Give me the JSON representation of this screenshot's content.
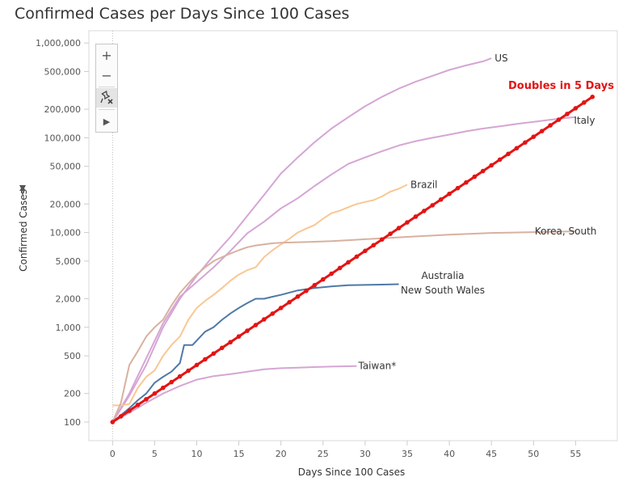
{
  "chart_data": {
    "type": "line",
    "title": "Confirmed Cases per Days Since 100 Cases",
    "xlabel": "Days Since 100 Cases",
    "ylabel": "Confirmed Cases",
    "xlim": [
      -3,
      60
    ],
    "ylim": [
      80,
      1100000
    ],
    "yscale": "log",
    "x_ticks": [
      0,
      5,
      10,
      15,
      20,
      25,
      30,
      35,
      40,
      45,
      50,
      55
    ],
    "y_ticks": [
      {
        "value": 100,
        "label": "100"
      },
      {
        "value": 200,
        "label": "200"
      },
      {
        "value": 500,
        "label": "500"
      },
      {
        "value": 1000,
        "label": "1,000"
      },
      {
        "value": 2000,
        "label": "2,000"
      },
      {
        "value": 5000,
        "label": "5,000"
      },
      {
        "value": 10000,
        "label": "10,000"
      },
      {
        "value": 20000,
        "label": "20,000"
      },
      {
        "value": 50000,
        "label": "50,000"
      },
      {
        "value": 100000,
        "label": "100,000"
      },
      {
        "value": 200000,
        "label": "200,000"
      },
      {
        "value": 500000,
        "label": "500,000"
      },
      {
        "value": 1000000,
        "label": "1,000,000"
      }
    ],
    "series": [
      {
        "name": "US",
        "color": "#d5a6d4",
        "points": [
          [
            0,
            100
          ],
          [
            2,
            190
          ],
          [
            4,
            400
          ],
          [
            6,
            1000
          ],
          [
            8,
            2000
          ],
          [
            10,
            3500
          ],
          [
            12,
            5700
          ],
          [
            14,
            9000
          ],
          [
            16,
            15000
          ],
          [
            18,
            25000
          ],
          [
            20,
            42000
          ],
          [
            22,
            62000
          ],
          [
            24,
            90000
          ],
          [
            26,
            125000
          ],
          [
            28,
            165000
          ],
          [
            30,
            215000
          ],
          [
            32,
            270000
          ],
          [
            34,
            330000
          ],
          [
            36,
            390000
          ],
          [
            38,
            450000
          ],
          [
            40,
            520000
          ],
          [
            42,
            580000
          ],
          [
            44,
            640000
          ],
          [
            45,
            690000
          ]
        ]
      },
      {
        "name": "Italy",
        "color": "#d5a6d4",
        "points": [
          [
            0,
            100
          ],
          [
            2,
            200
          ],
          [
            4,
            470
          ],
          [
            6,
            1100
          ],
          [
            8,
            2100
          ],
          [
            10,
            3000
          ],
          [
            12,
            4300
          ],
          [
            14,
            6400
          ],
          [
            16,
            9800
          ],
          [
            18,
            13000
          ],
          [
            20,
            18000
          ],
          [
            22,
            23000
          ],
          [
            24,
            31000
          ],
          [
            26,
            41000
          ],
          [
            28,
            53000
          ],
          [
            30,
            62000
          ],
          [
            32,
            72000
          ],
          [
            34,
            83000
          ],
          [
            36,
            92000
          ],
          [
            38,
            100000
          ],
          [
            40,
            108000
          ],
          [
            42,
            117000
          ],
          [
            44,
            125000
          ],
          [
            46,
            132000
          ],
          [
            48,
            140000
          ],
          [
            50,
            147000
          ],
          [
            52,
            155000
          ],
          [
            54,
            162000
          ],
          [
            55,
            165000
          ]
        ]
      },
      {
        "name": "Brazil",
        "color": "#f9c793",
        "points": [
          [
            0,
            150
          ],
          [
            1,
            150
          ],
          [
            2,
            155
          ],
          [
            3,
            230
          ],
          [
            4,
            300
          ],
          [
            5,
            350
          ],
          [
            6,
            500
          ],
          [
            7,
            650
          ],
          [
            8,
            800
          ],
          [
            9,
            1200
          ],
          [
            10,
            1600
          ],
          [
            11,
            1900
          ],
          [
            12,
            2200
          ],
          [
            13,
            2600
          ],
          [
            14,
            3100
          ],
          [
            15,
            3600
          ],
          [
            16,
            4000
          ],
          [
            17,
            4300
          ],
          [
            18,
            5500
          ],
          [
            19,
            6500
          ],
          [
            20,
            7500
          ],
          [
            21,
            8600
          ],
          [
            22,
            10000
          ],
          [
            23,
            11000
          ],
          [
            24,
            12000
          ],
          [
            25,
            14000
          ],
          [
            26,
            16000
          ],
          [
            27,
            17000
          ],
          [
            28,
            18500
          ],
          [
            29,
            20000
          ],
          [
            30,
            21000
          ],
          [
            31,
            22000
          ],
          [
            32,
            24000
          ],
          [
            33,
            27000
          ],
          [
            34,
            29000
          ],
          [
            35,
            32000
          ]
        ]
      },
      {
        "name": "Korea, South",
        "color": "#d8b1a0",
        "points": [
          [
            0,
            100
          ],
          [
            1,
            160
          ],
          [
            2,
            400
          ],
          [
            3,
            560
          ],
          [
            4,
            800
          ],
          [
            5,
            1000
          ],
          [
            6,
            1200
          ],
          [
            7,
            1700
          ],
          [
            8,
            2300
          ],
          [
            9,
            2900
          ],
          [
            10,
            3600
          ],
          [
            11,
            4300
          ],
          [
            12,
            5000
          ],
          [
            13,
            5500
          ],
          [
            14,
            6000
          ],
          [
            15,
            6500
          ],
          [
            16,
            7000
          ],
          [
            17,
            7300
          ],
          [
            18,
            7500
          ],
          [
            19,
            7700
          ],
          [
            20,
            7800
          ],
          [
            22,
            7900
          ],
          [
            24,
            8000
          ],
          [
            26,
            8100
          ],
          [
            28,
            8300
          ],
          [
            30,
            8500
          ],
          [
            32,
            8700
          ],
          [
            35,
            9000
          ],
          [
            40,
            9500
          ],
          [
            45,
            9900
          ],
          [
            50,
            10100
          ],
          [
            55,
            10300
          ]
        ]
      },
      {
        "name": "Australia\nNew South Wales",
        "color": "#4e79a7",
        "points": [
          [
            0,
            100
          ],
          [
            2,
            140
          ],
          [
            3,
            170
          ],
          [
            4,
            200
          ],
          [
            5,
            260
          ],
          [
            6,
            300
          ],
          [
            7,
            340
          ],
          [
            8,
            420
          ],
          [
            8.5,
            650
          ],
          [
            9.5,
            650
          ],
          [
            11,
            900
          ],
          [
            12,
            1000
          ],
          [
            13,
            1200
          ],
          [
            14,
            1400
          ],
          [
            15,
            1600
          ],
          [
            16,
            1800
          ],
          [
            17,
            2000
          ],
          [
            18,
            2000
          ],
          [
            19,
            2100
          ],
          [
            20,
            2200
          ],
          [
            22,
            2450
          ],
          [
            24,
            2600
          ],
          [
            26,
            2700
          ],
          [
            28,
            2780
          ],
          [
            30,
            2800
          ],
          [
            32,
            2820
          ],
          [
            34,
            2850
          ]
        ]
      },
      {
        "name": "Taiwan*",
        "color": "#d5a6d4",
        "points": [
          [
            0,
            100
          ],
          [
            2,
            125
          ],
          [
            4,
            160
          ],
          [
            6,
            200
          ],
          [
            8,
            240
          ],
          [
            10,
            280
          ],
          [
            12,
            305
          ],
          [
            14,
            320
          ],
          [
            16,
            340
          ],
          [
            18,
            360
          ],
          [
            20,
            370
          ],
          [
            22,
            375
          ],
          [
            24,
            380
          ],
          [
            26,
            385
          ],
          [
            29,
            390
          ]
        ]
      },
      {
        "name": "Doubles in 5 Days",
        "color": "#e31414",
        "doubling_days": 5,
        "x_start": 0,
        "x_end": 57,
        "y_start": 100
      }
    ]
  }
}
